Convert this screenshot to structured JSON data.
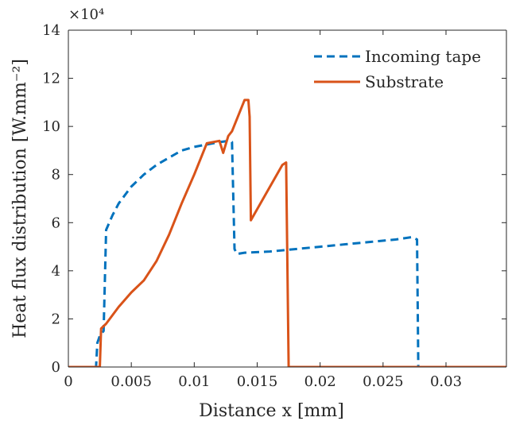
{
  "chart_data": {
    "type": "line",
    "title": "",
    "xlabel": "Distance x [mm]",
    "ylabel": "Heat flux distribution [W.mm⁻²]",
    "y_multiplier_label": "×10⁴",
    "xlim": [
      0,
      0.0348
    ],
    "ylim": [
      0,
      14
    ],
    "x_ticks": [
      0,
      0.005,
      0.01,
      0.015,
      0.02,
      0.025,
      0.03
    ],
    "x_tick_labels": [
      "0",
      "0.005",
      "0.01",
      "0.015",
      "0.02",
      "0.025",
      "0.03"
    ],
    "y_ticks": [
      0,
      2,
      4,
      6,
      8,
      10,
      12,
      14
    ],
    "y_tick_labels": [
      "0",
      "2",
      "4",
      "6",
      "8",
      "10",
      "12",
      "14"
    ],
    "grid": false,
    "legend_position": "top-right",
    "series": [
      {
        "name": "Incoming tape",
        "color": "#0072BD",
        "style": "dashed",
        "x": [
          0,
          0.0022,
          0.0023,
          0.0025,
          0.0028,
          0.003,
          0.0035,
          0.004,
          0.005,
          0.006,
          0.007,
          0.008,
          0.009,
          0.01,
          0.011,
          0.012,
          0.0128,
          0.013,
          0.0132,
          0.0134,
          0.014,
          0.016,
          0.018,
          0.02,
          0.022,
          0.024,
          0.026,
          0.0273,
          0.0277,
          0.0278,
          0.029,
          0.0348
        ],
        "y": [
          0,
          0,
          1.0,
          1.3,
          1.5,
          5.7,
          6.3,
          6.8,
          7.5,
          8.0,
          8.4,
          8.7,
          9.0,
          9.15,
          9.25,
          9.35,
          9.4,
          9.35,
          4.9,
          4.7,
          4.75,
          4.8,
          4.9,
          5.0,
          5.1,
          5.2,
          5.3,
          5.4,
          5.3,
          0,
          0,
          0
        ]
      },
      {
        "name": "Substrate",
        "color": "#D95319",
        "style": "solid",
        "x": [
          0,
          0.0025,
          0.0026,
          0.003,
          0.004,
          0.005,
          0.006,
          0.007,
          0.008,
          0.009,
          0.01,
          0.011,
          0.012,
          0.0123,
          0.0127,
          0.013,
          0.014,
          0.0143,
          0.0144,
          0.0145,
          0.017,
          0.0173,
          0.0175,
          0.018,
          0.025,
          0.0348
        ],
        "y": [
          0,
          0,
          1.6,
          1.8,
          2.5,
          3.1,
          3.6,
          4.4,
          5.5,
          6.8,
          8.0,
          9.3,
          9.4,
          8.9,
          9.6,
          9.8,
          11.1,
          11.1,
          10.4,
          6.1,
          8.4,
          8.5,
          0,
          0,
          0,
          0
        ]
      }
    ]
  }
}
